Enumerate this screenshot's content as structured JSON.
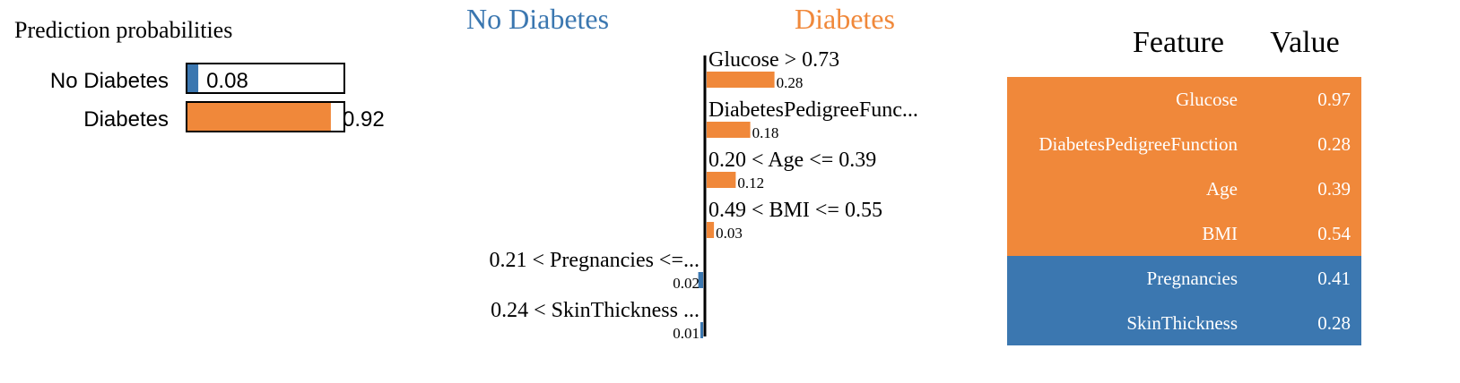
{
  "colors": {
    "negative": "#3b77b0",
    "positive": "#f0883a",
    "text": "#000000",
    "table_text": "#ffffff"
  },
  "chart_data": [
    {
      "type": "bar",
      "title": "Prediction probabilities",
      "categories": [
        "No Diabetes",
        "Diabetes"
      ],
      "values": [
        0.08,
        0.92
      ],
      "value_labels": [
        "0.08",
        "0.92"
      ],
      "colors": [
        "#3b77b0",
        "#f0883a"
      ],
      "xlim": [
        0,
        1
      ]
    },
    {
      "type": "bar",
      "orientation": "horizontal",
      "class_labels": {
        "negative": "No Diabetes",
        "positive": "Diabetes"
      },
      "categories": [
        "Glucose > 0.73",
        "DiabetesPedigreeFunc...",
        "0.20 < Age <= 0.39",
        "0.49 < BMI <= 0.55",
        "0.21 < Pregnancies <=...",
        "0.24 < SkinThickness ..."
      ],
      "values": [
        0.28,
        0.18,
        0.12,
        0.03,
        -0.02,
        -0.01
      ],
      "value_labels": [
        "0.28",
        "0.18",
        "0.12",
        "0.03",
        "0.02",
        "0.01"
      ],
      "xlim": [
        -0.28,
        0.28
      ]
    },
    {
      "type": "table",
      "columns": [
        "Feature",
        "Value"
      ],
      "rows": [
        {
          "feature": "Glucose",
          "value": "0.97",
          "side": "positive"
        },
        {
          "feature": "DiabetesPedigreeFunction",
          "value": "0.28",
          "side": "positive"
        },
        {
          "feature": "Age",
          "value": "0.39",
          "side": "positive"
        },
        {
          "feature": "BMI",
          "value": "0.54",
          "side": "positive"
        },
        {
          "feature": "Pregnancies",
          "value": "0.41",
          "side": "negative"
        },
        {
          "feature": "SkinThickness",
          "value": "0.28",
          "side": "negative"
        }
      ]
    }
  ]
}
